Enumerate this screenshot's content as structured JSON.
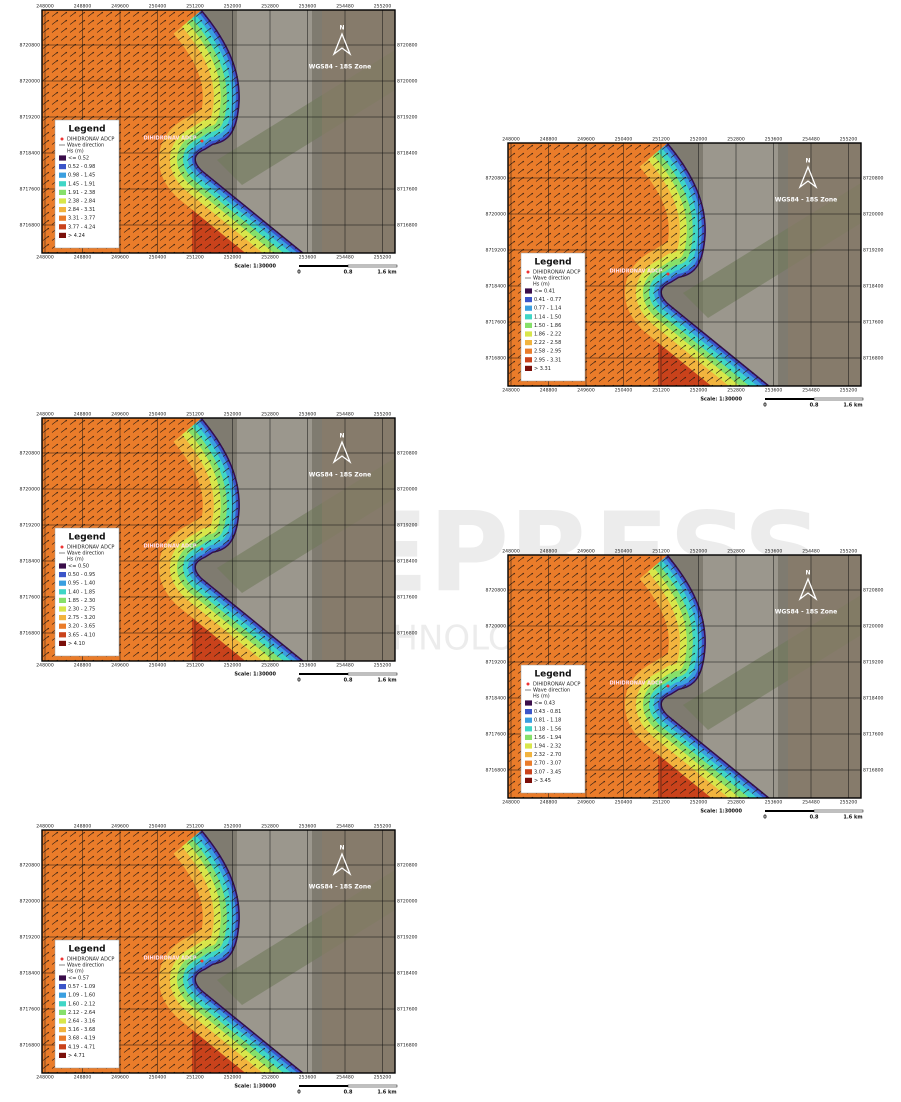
{
  "watermark": {
    "title": "SCITEPRESS",
    "subtitle": "SCIENCE AND TECHNOLOGY PUBLICATIONS"
  },
  "axes": {
    "x_ticks": [
      "248000",
      "248800",
      "249600",
      "250400",
      "251200",
      "252000",
      "252800",
      "253600",
      "254480",
      "255200"
    ],
    "y_ticks": [
      "8720800",
      "8720000",
      "8719200",
      "8718400",
      "8717600",
      "8716800"
    ]
  },
  "legend": {
    "title": "Legend",
    "adcp": "DIHIDRONAV ADCP",
    "wave": "Wave direction",
    "hs": "Hs (m)"
  },
  "map_labels": {
    "adcp": "DIHIDRONAV ADCP",
    "crs": "WGS84 - 18S Zone",
    "north": "N"
  },
  "scale": {
    "label": "Scale: 1:30000",
    "ticks": [
      "0",
      "0.8",
      "1.6 km"
    ]
  },
  "class_colors": [
    "#3a0d4a",
    "#3b55c9",
    "#3a9fe0",
    "#3fd6c6",
    "#86e06a",
    "#d8e64a",
    "#f2b43e",
    "#ea7c2a",
    "#c9421b",
    "#7a0f0a"
  ],
  "panels": [
    {
      "classes": [
        "<= 0.52",
        "0.52 - 0.98",
        "0.98 - 1.45",
        "1.45 - 1.91",
        "1.91 - 2.38",
        "2.38 - 2.84",
        "2.84 - 3.31",
        "3.31 - 3.77",
        "3.77 - 4.24",
        "> 4.24"
      ]
    },
    {
      "classes": [
        "<= 0.41",
        "0.41 - 0.77",
        "0.77 - 1.14",
        "1.14 - 1.50",
        "1.50 - 1.86",
        "1.86 - 2.22",
        "2.22 - 2.58",
        "2.58 - 2.95",
        "2.95 - 3.31",
        "> 3.31"
      ]
    },
    {
      "classes": [
        "<= 0.50",
        "0.50 - 0.95",
        "0.95 - 1.40",
        "1.40 - 1.85",
        "1.85 - 2.30",
        "2.30 - 2.75",
        "2.75 - 3.20",
        "3.20 - 3.65",
        "3.65 - 4.10",
        "> 4.10"
      ]
    },
    {
      "classes": [
        "<= 0.43",
        "0.43 - 0.81",
        "0.81 - 1.18",
        "1.18 - 1.56",
        "1.56 - 1.94",
        "1.94 - 2.32",
        "2.32 - 2.70",
        "2.70 - 3.07",
        "3.07 - 3.45",
        "> 3.45"
      ]
    },
    {
      "classes": [
        "<= 0.57",
        "0.57 - 1.09",
        "1.09 - 1.60",
        "1.60 - 2.12",
        "2.12 - 2.64",
        "2.64 - 3.16",
        "3.16 - 3.68",
        "3.68 - 4.19",
        "4.19 - 4.71",
        "> 4.71"
      ]
    }
  ]
}
